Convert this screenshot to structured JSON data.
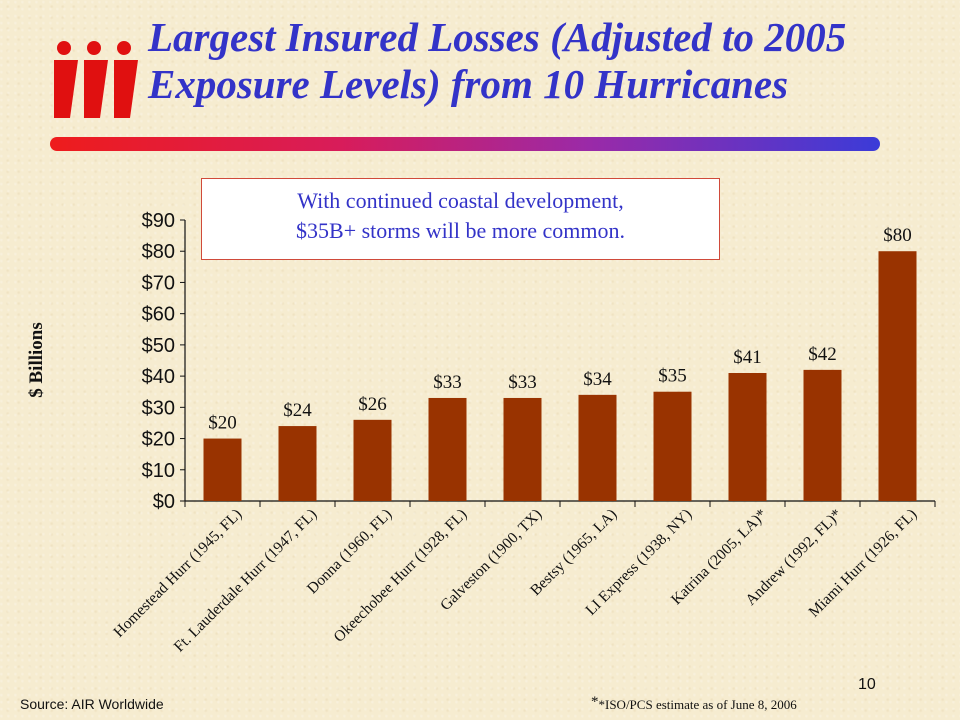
{
  "title": {
    "line1": "Largest Insured Losses (Adjusted to 2005",
    "line2": "Exposure Levels) from 10 Hurricanes"
  },
  "logo": {
    "icon": "iii-logo",
    "text": "iii",
    "color": "#e01010"
  },
  "callout": {
    "line1": "With continued coastal development,",
    "line2": "$35B+ storms will be more common."
  },
  "source": "Source: AIR Worldwide",
  "footnote": {
    "star": "*",
    "text": "*ISO/PCS estimate as of June 8, 2006"
  },
  "page_number": "10",
  "colors": {
    "bar": "#993300",
    "title": "#3333c8",
    "callout_border": "#d04a3a"
  },
  "chart_data": {
    "type": "bar",
    "categories": [
      "Homestead Hurr (1945, FL)",
      "Ft. Lauderdale Hurr (1947, FL)",
      "Donna (1960, FL)",
      "Okeechobee Hurr (1928, FL)",
      "Galveston (1900, TX)",
      "Bestsy (1965, LA)",
      "LI Express (1938, NY)",
      "Katrina (2005, LA)*",
      "Andrew (1992, FL)*",
      "Miami Hurr (1926, FL)"
    ],
    "values": [
      20,
      24,
      26,
      33,
      33,
      34,
      35,
      41,
      42,
      80
    ],
    "data_labels": [
      "$20",
      "$24",
      "$26",
      "$33",
      "$33",
      "$34",
      "$35",
      "$41",
      "$42",
      "$80"
    ],
    "ylabel": "$ Billions",
    "ylim": [
      0,
      90
    ],
    "yticks": [
      "$0",
      "$10",
      "$20",
      "$30",
      "$40",
      "$50",
      "$60",
      "$70",
      "$80",
      "$90"
    ],
    "grid": false,
    "legend": "none"
  }
}
